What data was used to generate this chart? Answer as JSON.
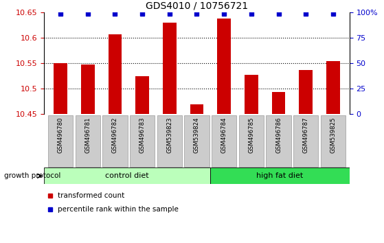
{
  "title": "GDS4010 / 10756721",
  "samples": [
    "GSM496780",
    "GSM496781",
    "GSM496782",
    "GSM496783",
    "GSM539823",
    "GSM539824",
    "GSM496784",
    "GSM496785",
    "GSM496786",
    "GSM496787",
    "GSM539825"
  ],
  "bar_values": [
    10.55,
    10.548,
    10.607,
    10.524,
    10.63,
    10.47,
    10.638,
    10.527,
    10.494,
    10.537,
    10.554
  ],
  "ylim_left": [
    10.45,
    10.65
  ],
  "ylim_right": [
    0,
    100
  ],
  "yticks_left": [
    10.45,
    10.5,
    10.55,
    10.6,
    10.65
  ],
  "yticks_right": [
    0,
    25,
    50,
    75,
    100
  ],
  "bar_color": "#cc0000",
  "percentile_color": "#0000cc",
  "grid_color": "#000000",
  "control_diet_samples": 6,
  "control_diet_label": "control diet",
  "high_fat_diet_label": "high fat diet",
  "control_diet_color": "#bbffbb",
  "high_fat_diet_color": "#33dd55",
  "sample_box_color": "#cccccc",
  "sample_box_edge": "#999999",
  "legend_bar_label": "transformed count",
  "legend_percentile_label": "percentile rank within the sample",
  "growth_protocol_label": "growth protocol",
  "ylabel_left_color": "#cc0000",
  "ylabel_right_color": "#0000cc",
  "gridline_values": [
    10.5,
    10.55,
    10.6
  ]
}
